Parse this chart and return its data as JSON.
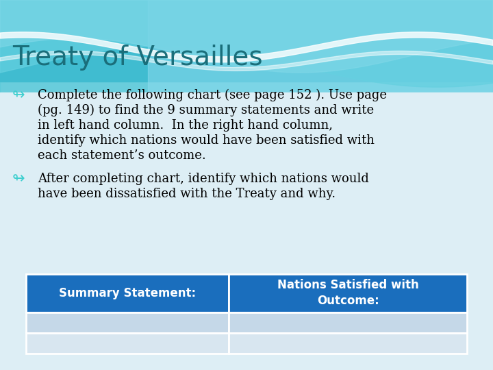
{
  "title": "Treaty of Versailles",
  "title_color": "#1a6e7a",
  "title_fontsize": 28,
  "background_color": "#ddeef5",
  "bullet_points": [
    "Complete the following chart (see page 152 ). Use page\n(pg. 149) to find the 9 summary statements and write\nin left hand column.  In the right hand column,\nidentify which nations would have been satisfied with\neach statement’s outcome.",
    "After completing chart, identify which nations would\nhave been dissatisfied with the Treaty and why."
  ],
  "bullet_color": "#000000",
  "bullet_symbol_color": "#3ecfcf",
  "bullet_fontsize": 13,
  "table_header_bg": "#1a6ebd",
  "table_header_text": "#ffffff",
  "table_row1_bg": "#c5d8e8",
  "table_row2_bg": "#d8e6f0",
  "table_col1_header": "Summary Statement:",
  "table_col2_header": "Nations Satisfied with\nOutcome:",
  "wave_bg": "#55c8d8",
  "wave_light": "#a0e0ee",
  "wave_white": "#e8f8ff"
}
